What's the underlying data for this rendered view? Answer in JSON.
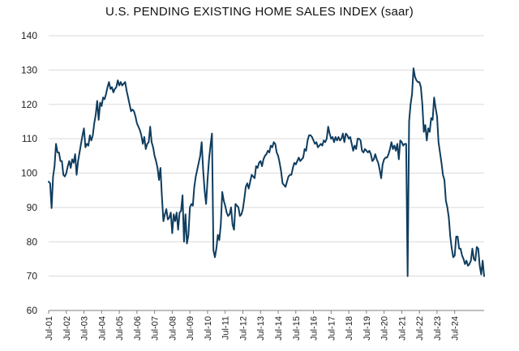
{
  "chart_data": {
    "type": "line",
    "title": "U.S. PENDING EXISTING HOME SALES INDEX (saar)",
    "xlabel": "",
    "ylabel": "",
    "ylim": [
      60,
      140
    ],
    "yticks": [
      60,
      70,
      80,
      90,
      100,
      110,
      120,
      130,
      140
    ],
    "grid": "horizontal",
    "legend": "none",
    "color": "#0f3d5f",
    "xticks": [
      "Jul-01",
      "Jul-02",
      "Jul-03",
      "Jul-04",
      "Jul-05",
      "Jul-06",
      "Jul-07",
      "Jul-08",
      "Jul-09",
      "Jul-10",
      "Jul-11",
      "Jul-12",
      "Jul-13",
      "Jul-14",
      "Jul-15",
      "Jul-16",
      "Jul-17",
      "Jul-18",
      "Jul-19",
      "Jul-20",
      "Jul-21",
      "Jul-22",
      "Jul-23",
      "Jul-24"
    ],
    "series": [
      {
        "start": "2001-07",
        "frequency": "monthly",
        "values": [
          97.5,
          97,
          89.8,
          99,
          102,
          108.5,
          106,
          106,
          103.5,
          103.5,
          99.5,
          99,
          100,
          102,
          103.5,
          101.5,
          104,
          103,
          105.5,
          99.5,
          103.5,
          106,
          108.5,
          111,
          113,
          107.5,
          108.5,
          108,
          111,
          109.5,
          111,
          114.5,
          117,
          121,
          115.5,
          120.5,
          119.5,
          122,
          121.5,
          123,
          125,
          126.5,
          124.5,
          125,
          123.5,
          124.5,
          125,
          127,
          125.5,
          126.5,
          125.5,
          126,
          126.5,
          124,
          122,
          120,
          118,
          118.5,
          118,
          116.5,
          114.5,
          113.5,
          112.5,
          111,
          108.5,
          110.5,
          107,
          108.5,
          109,
          113.5,
          109,
          107.5,
          105,
          103.5,
          101.5,
          98,
          101.5,
          93,
          86,
          88,
          89.5,
          86.5,
          87,
          88.5,
          82.5,
          88,
          86,
          88.5,
          83.5,
          88.5,
          89,
          93.5,
          80,
          88,
          79.5,
          82,
          90,
          91,
          90.5,
          96,
          99,
          101,
          103,
          105,
          109,
          101,
          95,
          91,
          98,
          104,
          108,
          111.5,
          77.5,
          75.5,
          78,
          82,
          80.5,
          85,
          94.5,
          92,
          90.5,
          88.5,
          87.5,
          88,
          90,
          85,
          83.5,
          91,
          90.5,
          90,
          87.5,
          88,
          89.5,
          92.5,
          96,
          97,
          95.5,
          97.5,
          99.5,
          99,
          98.5,
          102,
          101.5,
          103,
          103.5,
          102,
          104,
          105,
          105.5,
          106.5,
          106,
          108,
          107.5,
          109,
          108.5,
          106,
          105,
          103,
          100.5,
          97,
          96.5,
          96,
          97.5,
          99,
          99.5,
          99.5,
          101.5,
          103,
          102.5,
          103.5,
          104.5,
          103.5,
          104,
          104.5,
          107,
          106.5,
          109.5,
          111,
          111,
          110.5,
          109.5,
          108.5,
          109,
          107.5,
          108,
          108.5,
          108,
          109.5,
          109,
          110,
          113.5,
          111.5,
          110,
          110.5,
          109,
          110.5,
          109.5,
          110.5,
          109.5,
          110,
          111.5,
          109,
          111.5,
          111,
          110,
          110.5,
          108.5,
          106.5,
          108,
          107,
          110,
          110,
          109.5,
          106.5,
          106,
          107,
          106.5,
          106,
          106.5,
          105.5,
          103.5,
          104,
          105.5,
          104,
          103,
          101,
          98.5,
          102.5,
          104,
          104.5,
          104.5,
          105.5,
          107,
          109,
          107,
          108,
          106.5,
          108.5,
          104,
          109.5,
          109,
          108,
          108.5,
          108.5,
          70,
          115,
          120,
          123,
          130.5,
          128,
          127,
          126.5,
          126.5,
          125,
          120,
          112,
          114,
          109.5,
          113,
          112,
          116,
          115.5,
          122,
          119,
          116.5,
          109,
          106,
          103,
          99.5,
          98,
          92,
          90,
          87,
          81.5,
          78,
          75.5,
          76,
          81.5,
          81.5,
          78,
          78,
          76,
          75,
          73.5,
          74.5,
          73,
          73.5,
          74.5,
          78,
          75,
          74.5,
          78.5,
          78,
          73,
          70.5,
          74.5,
          70
        ]
      }
    ]
  }
}
